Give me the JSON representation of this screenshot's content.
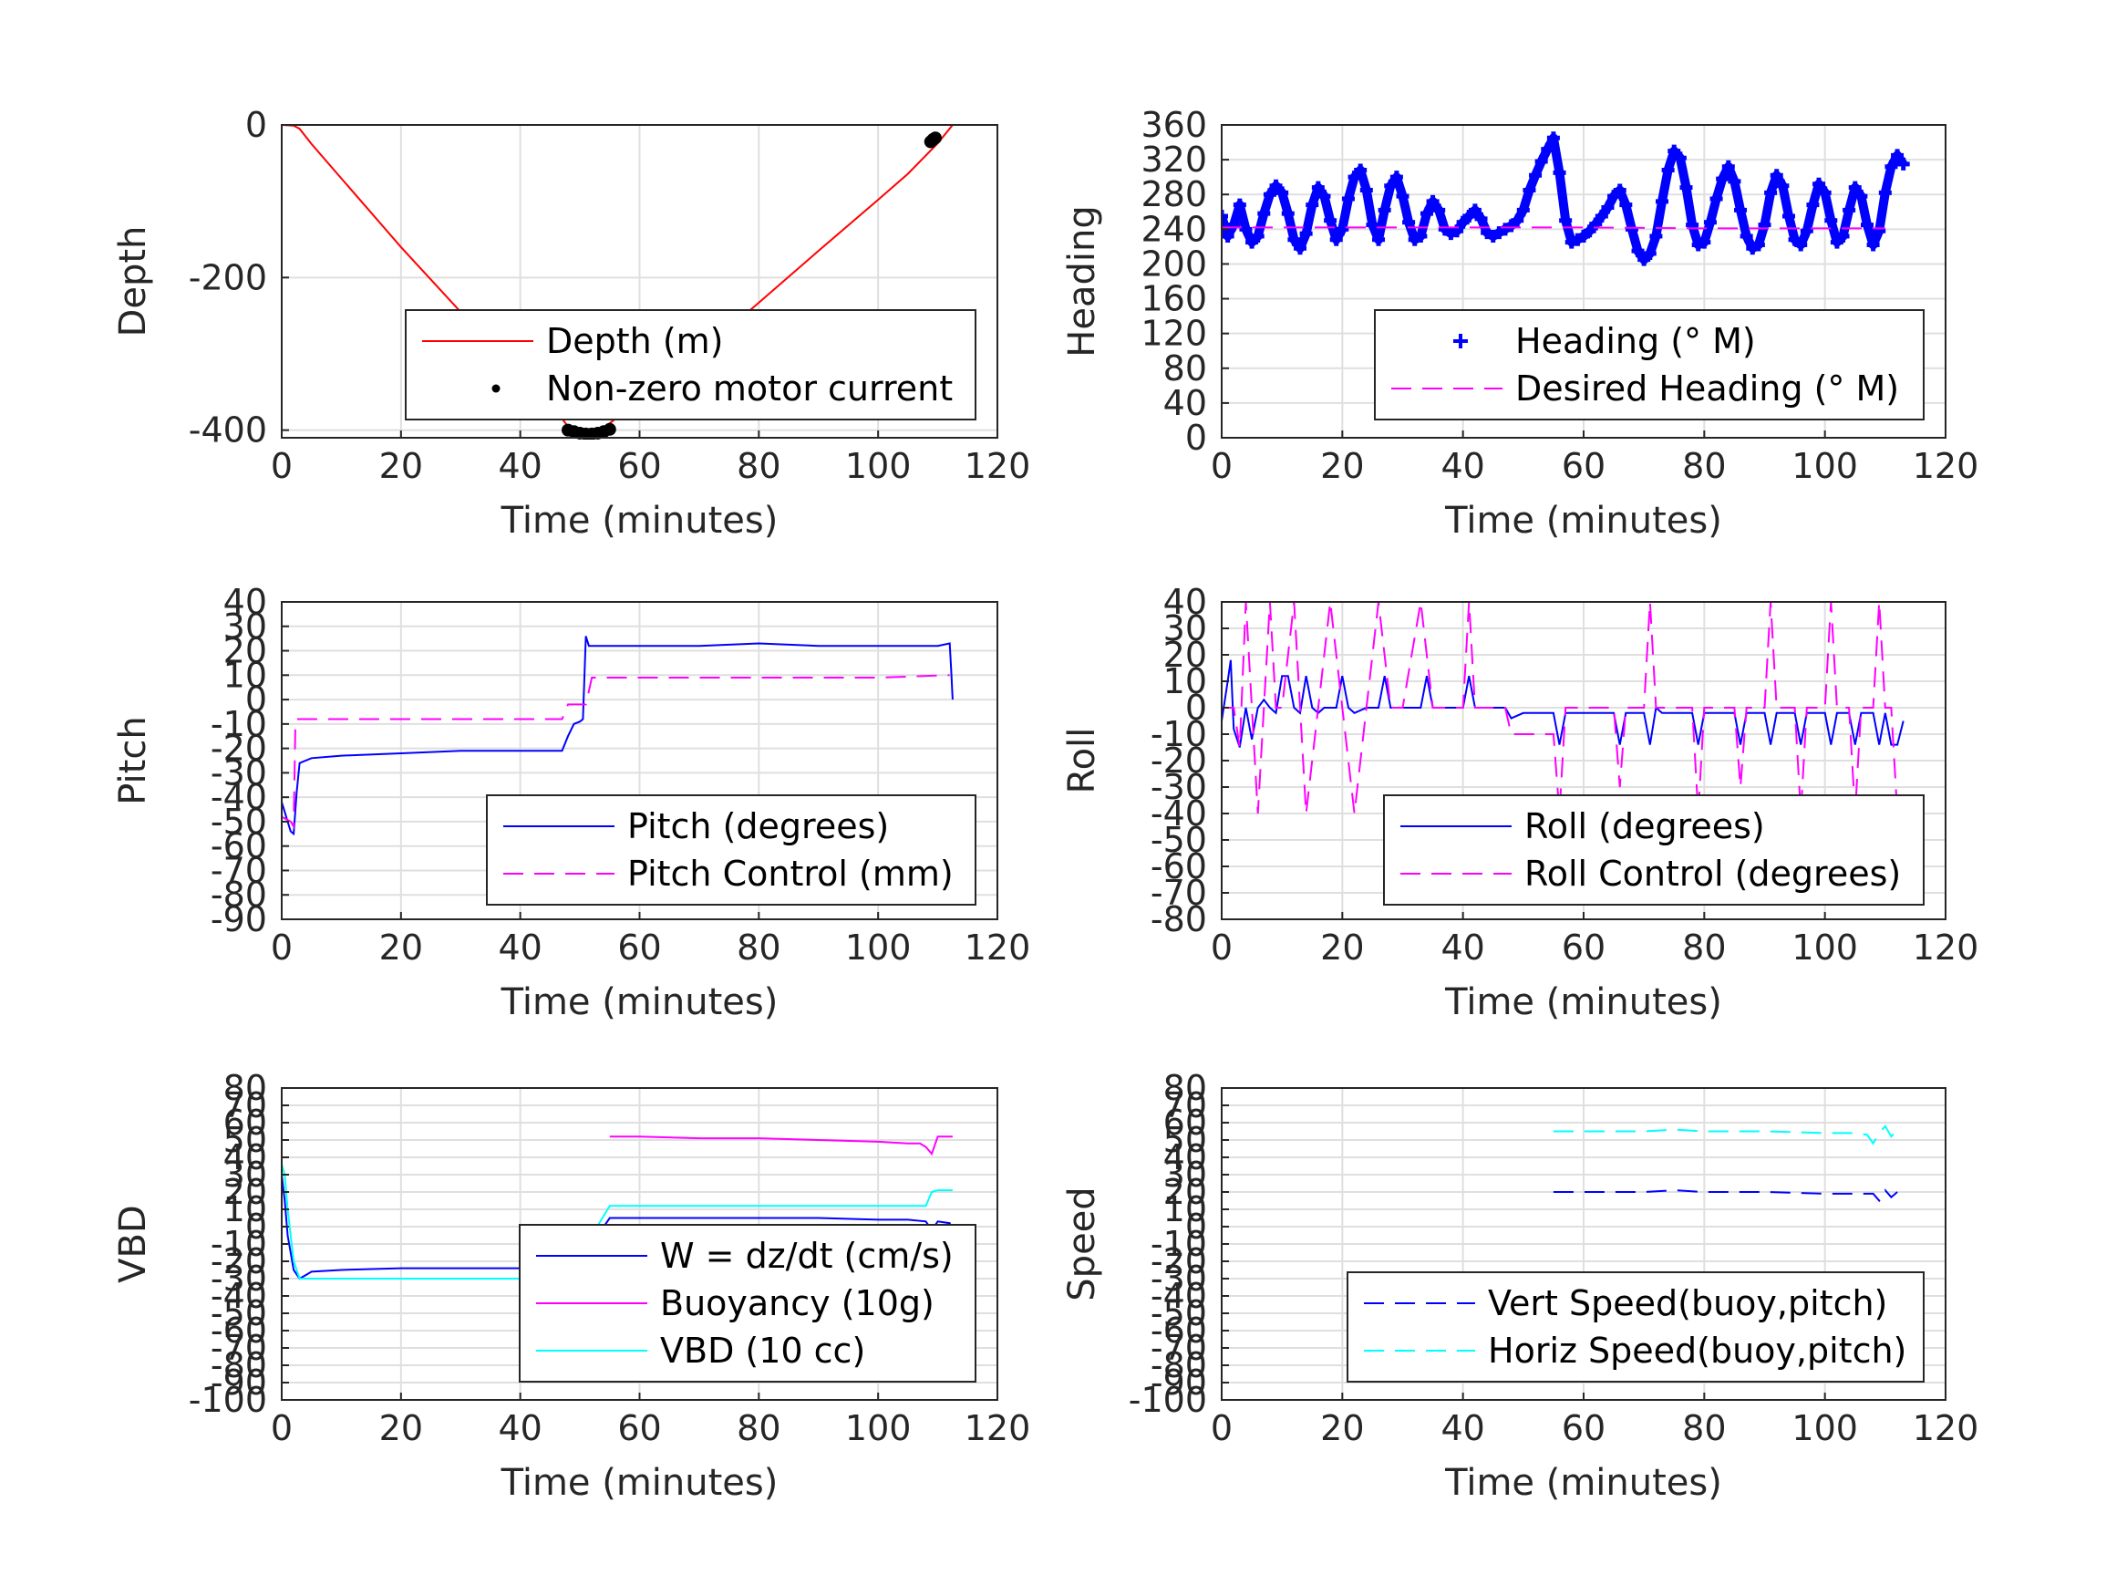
{
  "chart_data": [
    {
      "type": "line",
      "xlabel": "Time (minutes)",
      "ylabel": "Depth",
      "xlim": [
        0,
        120
      ],
      "ylim": [
        -410,
        0
      ],
      "xticks": [
        0,
        20,
        40,
        60,
        80,
        100,
        120
      ],
      "yticks": [
        -400,
        -200,
        0
      ],
      "grid": true,
      "legend_position": "bottom-right",
      "series": [
        {
          "name": "Depth (m)",
          "style": "solid",
          "color": "#ff0000",
          "x": [
            0,
            2,
            3,
            5,
            10,
            20,
            30,
            40,
            45,
            48,
            50,
            52,
            54,
            56,
            60,
            70,
            80,
            90,
            100,
            105,
            110,
            112.5
          ],
          "y": [
            0,
            -1,
            -5,
            -25,
            -70,
            -160,
            -245,
            -325,
            -365,
            -395,
            -405,
            -405,
            -397,
            -385,
            -356,
            -300,
            -233,
            -165,
            -98,
            -64,
            -24,
            0
          ]
        },
        {
          "name": "Non-zero motor current",
          "style": "dots",
          "color": "#000000",
          "x": [
            48,
            49,
            50,
            51,
            52,
            53,
            54,
            55,
            108.8,
            109.2,
            109.6
          ],
          "y": [
            -400,
            -402,
            -404,
            -405,
            -405,
            -404,
            -402,
            -399,
            -22,
            -19,
            -17
          ]
        }
      ]
    },
    {
      "type": "scatter",
      "xlabel": "Time (minutes)",
      "ylabel": "Heading",
      "xlim": [
        0,
        120
      ],
      "ylim": [
        0,
        360
      ],
      "xticks": [
        0,
        20,
        40,
        60,
        80,
        100,
        120
      ],
      "yticks": [
        0,
        40,
        80,
        120,
        160,
        200,
        240,
        280,
        320,
        360
      ],
      "grid": true,
      "legend_position": "bottom-right",
      "series": [
        {
          "name": "Heading (° M)",
          "style": "plus",
          "color": "#0000ff",
          "x": [
            0,
            1,
            2,
            3,
            4,
            5,
            6,
            7,
            8,
            9,
            10,
            11,
            12,
            13,
            14,
            15,
            16,
            17,
            18,
            19,
            20,
            21,
            22,
            23,
            24,
            25,
            26,
            27,
            28,
            29,
            30,
            31,
            32,
            33,
            34,
            35,
            36,
            37,
            38,
            39,
            40,
            41,
            42,
            43,
            44,
            45,
            46,
            47,
            48,
            49,
            50,
            51,
            52,
            53,
            54,
            55,
            56,
            57,
            58,
            59,
            60,
            61,
            62,
            63,
            64,
            65,
            66,
            67,
            68,
            69,
            70,
            71,
            72,
            73,
            74,
            75,
            76,
            77,
            78,
            79,
            80,
            81,
            82,
            83,
            84,
            85,
            86,
            87,
            88,
            89,
            90,
            91,
            92,
            93,
            94,
            95,
            96,
            97,
            98,
            99,
            100,
            101,
            102,
            103,
            104,
            105,
            106,
            107,
            108,
            109,
            110,
            111,
            112,
            113
          ],
          "y": [
            255,
            232,
            245,
            268,
            240,
            225,
            232,
            258,
            280,
            290,
            282,
            258,
            228,
            218,
            235,
            268,
            288,
            278,
            250,
            228,
            240,
            275,
            300,
            308,
            285,
            245,
            228,
            262,
            290,
            300,
            278,
            248,
            228,
            232,
            258,
            272,
            262,
            240,
            235,
            238,
            248,
            255,
            262,
            252,
            236,
            232,
            236,
            240,
            244,
            250,
            262,
            285,
            302,
            318,
            332,
            345,
            305,
            250,
            225,
            228,
            232,
            238,
            246,
            255,
            265,
            278,
            285,
            268,
            240,
            215,
            205,
            212,
            232,
            272,
            308,
            330,
            322,
            288,
            245,
            222,
            225,
            248,
            275,
            298,
            312,
            295,
            262,
            232,
            218,
            222,
            245,
            282,
            302,
            290,
            255,
            228,
            222,
            238,
            268,
            292,
            282,
            250,
            225,
            232,
            262,
            288,
            278,
            245,
            222,
            238,
            282,
            312,
            325,
            315
          ]
        },
        {
          "name": "Desired Heading (° M)",
          "style": "dash",
          "color": "#ff00ff",
          "x": [
            0,
            20,
            40,
            60,
            80,
            100,
            110
          ],
          "y": [
            242,
            242,
            242,
            242,
            241,
            241,
            241
          ]
        }
      ]
    },
    {
      "type": "line",
      "xlabel": "Time (minutes)",
      "ylabel": "Pitch",
      "xlim": [
        0,
        120
      ],
      "ylim": [
        -90,
        40
      ],
      "xticks": [
        0,
        20,
        40,
        60,
        80,
        100,
        120
      ],
      "yticks": [
        -90,
        -80,
        -70,
        -60,
        -50,
        -40,
        -30,
        -20,
        -10,
        0,
        10,
        20,
        30,
        40
      ],
      "grid": true,
      "legend_position": "bottom-right",
      "series": [
        {
          "name": "Pitch (degrees)",
          "style": "solid",
          "color": "#0000ff",
          "x": [
            0,
            0.5,
            1,
            1.5,
            2,
            2.5,
            3,
            5,
            10,
            20,
            30,
            40,
            45,
            47,
            48,
            49,
            50,
            50.5,
            51,
            51.5,
            52,
            60,
            70,
            80,
            90,
            100,
            110,
            112,
            112.3,
            112.5
          ],
          "y": [
            -42,
            -46,
            -50,
            -54,
            -55,
            -38,
            -26,
            -24,
            -23,
            -22,
            -21,
            -21,
            -21,
            -21,
            -15,
            -10,
            -9,
            -8,
            26,
            22,
            22,
            22,
            22,
            23,
            22,
            22,
            22,
            23,
            10,
            0
          ]
        },
        {
          "name": "Pitch Control (mm)",
          "style": "dash",
          "color": "#ff00ff",
          "x": [
            0,
            1.5,
            2,
            2.3,
            2.5,
            3,
            5,
            20,
            40,
            47,
            48,
            49,
            50,
            51,
            52,
            60,
            80,
            100,
            112
          ],
          "y": [
            -48,
            -50,
            -52,
            -10,
            -8,
            -8,
            -8,
            -8,
            -8,
            -8,
            -2,
            -2,
            -2,
            -2,
            9,
            9,
            9,
            9,
            10
          ]
        }
      ]
    },
    {
      "type": "line",
      "xlabel": "Time (minutes)",
      "ylabel": "Roll",
      "xlim": [
        0,
        120
      ],
      "ylim": [
        -80,
        40
      ],
      "xticks": [
        0,
        20,
        40,
        60,
        80,
        100,
        120
      ],
      "yticks": [
        -80,
        -70,
        -60,
        -50,
        -40,
        -30,
        -20,
        -10,
        0,
        10,
        20,
        30,
        40
      ],
      "grid": true,
      "legend_position": "bottom-right",
      "series": [
        {
          "name": "Roll (degrees)",
          "style": "solid",
          "color": "#0000ff",
          "x": [
            0,
            1,
            1.5,
            2,
            3,
            4,
            5,
            6,
            7,
            8,
            9,
            10,
            11,
            12,
            13,
            14,
            15,
            16,
            17,
            19,
            20,
            21,
            22,
            24,
            26,
            27,
            28,
            30,
            33,
            34,
            35,
            37,
            40,
            41,
            42,
            45,
            47,
            48,
            50,
            55,
            56,
            57,
            60,
            65,
            66,
            67,
            70,
            71,
            72,
            73,
            78,
            79,
            80,
            81,
            85,
            86,
            87,
            90,
            91,
            92,
            95,
            96,
            97,
            100,
            101,
            102,
            104,
            105,
            106,
            108,
            109,
            110,
            111,
            112,
            113
          ],
          "y": [
            -5,
            10,
            18,
            -8,
            -15,
            0,
            -12,
            0,
            3,
            0,
            -2,
            12,
            12,
            0,
            -2,
            12,
            0,
            -2,
            0,
            0,
            12,
            0,
            -2,
            0,
            0,
            12,
            0,
            0,
            0,
            12,
            0,
            0,
            0,
            12,
            0,
            0,
            0,
            -4,
            -2,
            -2,
            -14,
            -2,
            -2,
            -2,
            -14,
            -2,
            -2,
            -14,
            0,
            -2,
            -2,
            -14,
            -2,
            -2,
            -2,
            -14,
            -2,
            -2,
            -14,
            -2,
            -2,
            -14,
            -2,
            -2,
            -14,
            -2,
            -2,
            -14,
            -2,
            -2,
            -14,
            -2,
            -14,
            -14,
            -5
          ]
        },
        {
          "name": "Roll Control (degrees)",
          "style": "dash",
          "color": "#ff00ff",
          "x": [
            0,
            2,
            3,
            4,
            5,
            6,
            7,
            8,
            9,
            10,
            12,
            14,
            16,
            18,
            20,
            22,
            24,
            26,
            28,
            30,
            33,
            35,
            40,
            41,
            42,
            47,
            48,
            50,
            55,
            56,
            57,
            60,
            65,
            66,
            67,
            70,
            71,
            72,
            73,
            78,
            79,
            80,
            81,
            85,
            86,
            87,
            90,
            91,
            92,
            95,
            96,
            97,
            100,
            101,
            102,
            104,
            105,
            106,
            108,
            109,
            110,
            111,
            112,
            113
          ],
          "y": [
            0,
            0,
            -15,
            40,
            0,
            -40,
            0,
            40,
            0,
            0,
            40,
            -40,
            0,
            40,
            0,
            -40,
            0,
            40,
            0,
            0,
            40,
            0,
            0,
            40,
            0,
            0,
            -10,
            -10,
            -10,
            -40,
            0,
            0,
            0,
            -30,
            0,
            0,
            40,
            0,
            0,
            0,
            -40,
            0,
            0,
            0,
            -30,
            0,
            0,
            40,
            0,
            0,
            -40,
            0,
            0,
            40,
            0,
            0,
            -40,
            0,
            0,
            40,
            0,
            0,
            -40,
            -50
          ]
        }
      ]
    },
    {
      "type": "line",
      "xlabel": "Time (minutes)",
      "ylabel": "VBD",
      "xlim": [
        0,
        120
      ],
      "ylim": [
        -100,
        80
      ],
      "xticks": [
        0,
        20,
        40,
        60,
        80,
        100,
        120
      ],
      "yticks": [
        -100,
        -90,
        -80,
        -70,
        -60,
        -50,
        -40,
        -30,
        -20,
        -10,
        0,
        10,
        20,
        30,
        40,
        50,
        60,
        70,
        80
      ],
      "grid": true,
      "legend_position": "bottom-right",
      "series": [
        {
          "name": "W = dz/dt (cm/s)",
          "style": "solid",
          "color": "#0000ff",
          "x": [
            0,
            0.5,
            1,
            2,
            3,
            4,
            5,
            10,
            20,
            30,
            40,
            45,
            47,
            48,
            50,
            52,
            55,
            60,
            70,
            80,
            90,
            100,
            105,
            108,
            109,
            110,
            112,
            112.5
          ],
          "y": [
            30,
            15,
            -5,
            -25,
            -30,
            -28,
            -26,
            -25,
            -24,
            -24,
            -24,
            -23,
            -23,
            -21,
            -20,
            -10,
            5,
            5,
            5,
            5,
            5,
            4,
            4,
            3,
            -2,
            3,
            2,
            -4
          ]
        },
        {
          "name": "Buoyancy (10g)",
          "style": "solid",
          "color": "#ff00ff",
          "x": [
            55,
            60,
            70,
            80,
            90,
            100,
            105,
            107,
            108,
            109,
            110,
            112.5
          ],
          "y": [
            52,
            52,
            51,
            51,
            50,
            49,
            48,
            48,
            46,
            42,
            52,
            52
          ]
        },
        {
          "name": "VBD (10 cc)",
          "style": "solid",
          "color": "#00ffff",
          "x": [
            0,
            0.5,
            1,
            2,
            3,
            5,
            10,
            20,
            30,
            40,
            45,
            48,
            50,
            52,
            55,
            60,
            80,
            100,
            108,
            109,
            110,
            112.5
          ],
          "y": [
            36,
            30,
            10,
            -20,
            -30,
            -30,
            -30,
            -30,
            -30,
            -30,
            -30,
            -30,
            -20,
            -5,
            12,
            12,
            12,
            12,
            12,
            20,
            21,
            21
          ]
        }
      ]
    },
    {
      "type": "line",
      "xlabel": "Time (minutes)",
      "ylabel": "Speed",
      "xlim": [
        0,
        120
      ],
      "ylim": [
        -100,
        80
      ],
      "xticks": [
        0,
        20,
        40,
        60,
        80,
        100,
        120
      ],
      "yticks": [
        -100,
        -90,
        -80,
        -70,
        -60,
        -50,
        -40,
        -30,
        -20,
        -10,
        0,
        10,
        20,
        30,
        40,
        50,
        60,
        70,
        80
      ],
      "grid": true,
      "legend_position": "bottom-right",
      "series": [
        {
          "name": "Vert Speed(buoy,pitch)",
          "style": "dash",
          "color": "#0000ff",
          "x": [
            55,
            60,
            70,
            75,
            80,
            90,
            100,
            105,
            108,
            109,
            110,
            111,
            112
          ],
          "y": [
            20,
            20,
            20,
            21,
            20,
            20,
            19,
            19,
            19,
            15,
            21,
            17,
            20
          ]
        },
        {
          "name": "Horiz Speed(buoy,pitch)",
          "style": "dash",
          "color": "#00ffff",
          "x": [
            55,
            60,
            70,
            75,
            80,
            90,
            100,
            105,
            107,
            108,
            109,
            110,
            111,
            112
          ],
          "y": [
            55,
            55,
            55,
            56,
            55,
            55,
            54,
            54,
            53,
            48,
            54,
            58,
            52,
            56
          ]
        }
      ]
    }
  ]
}
